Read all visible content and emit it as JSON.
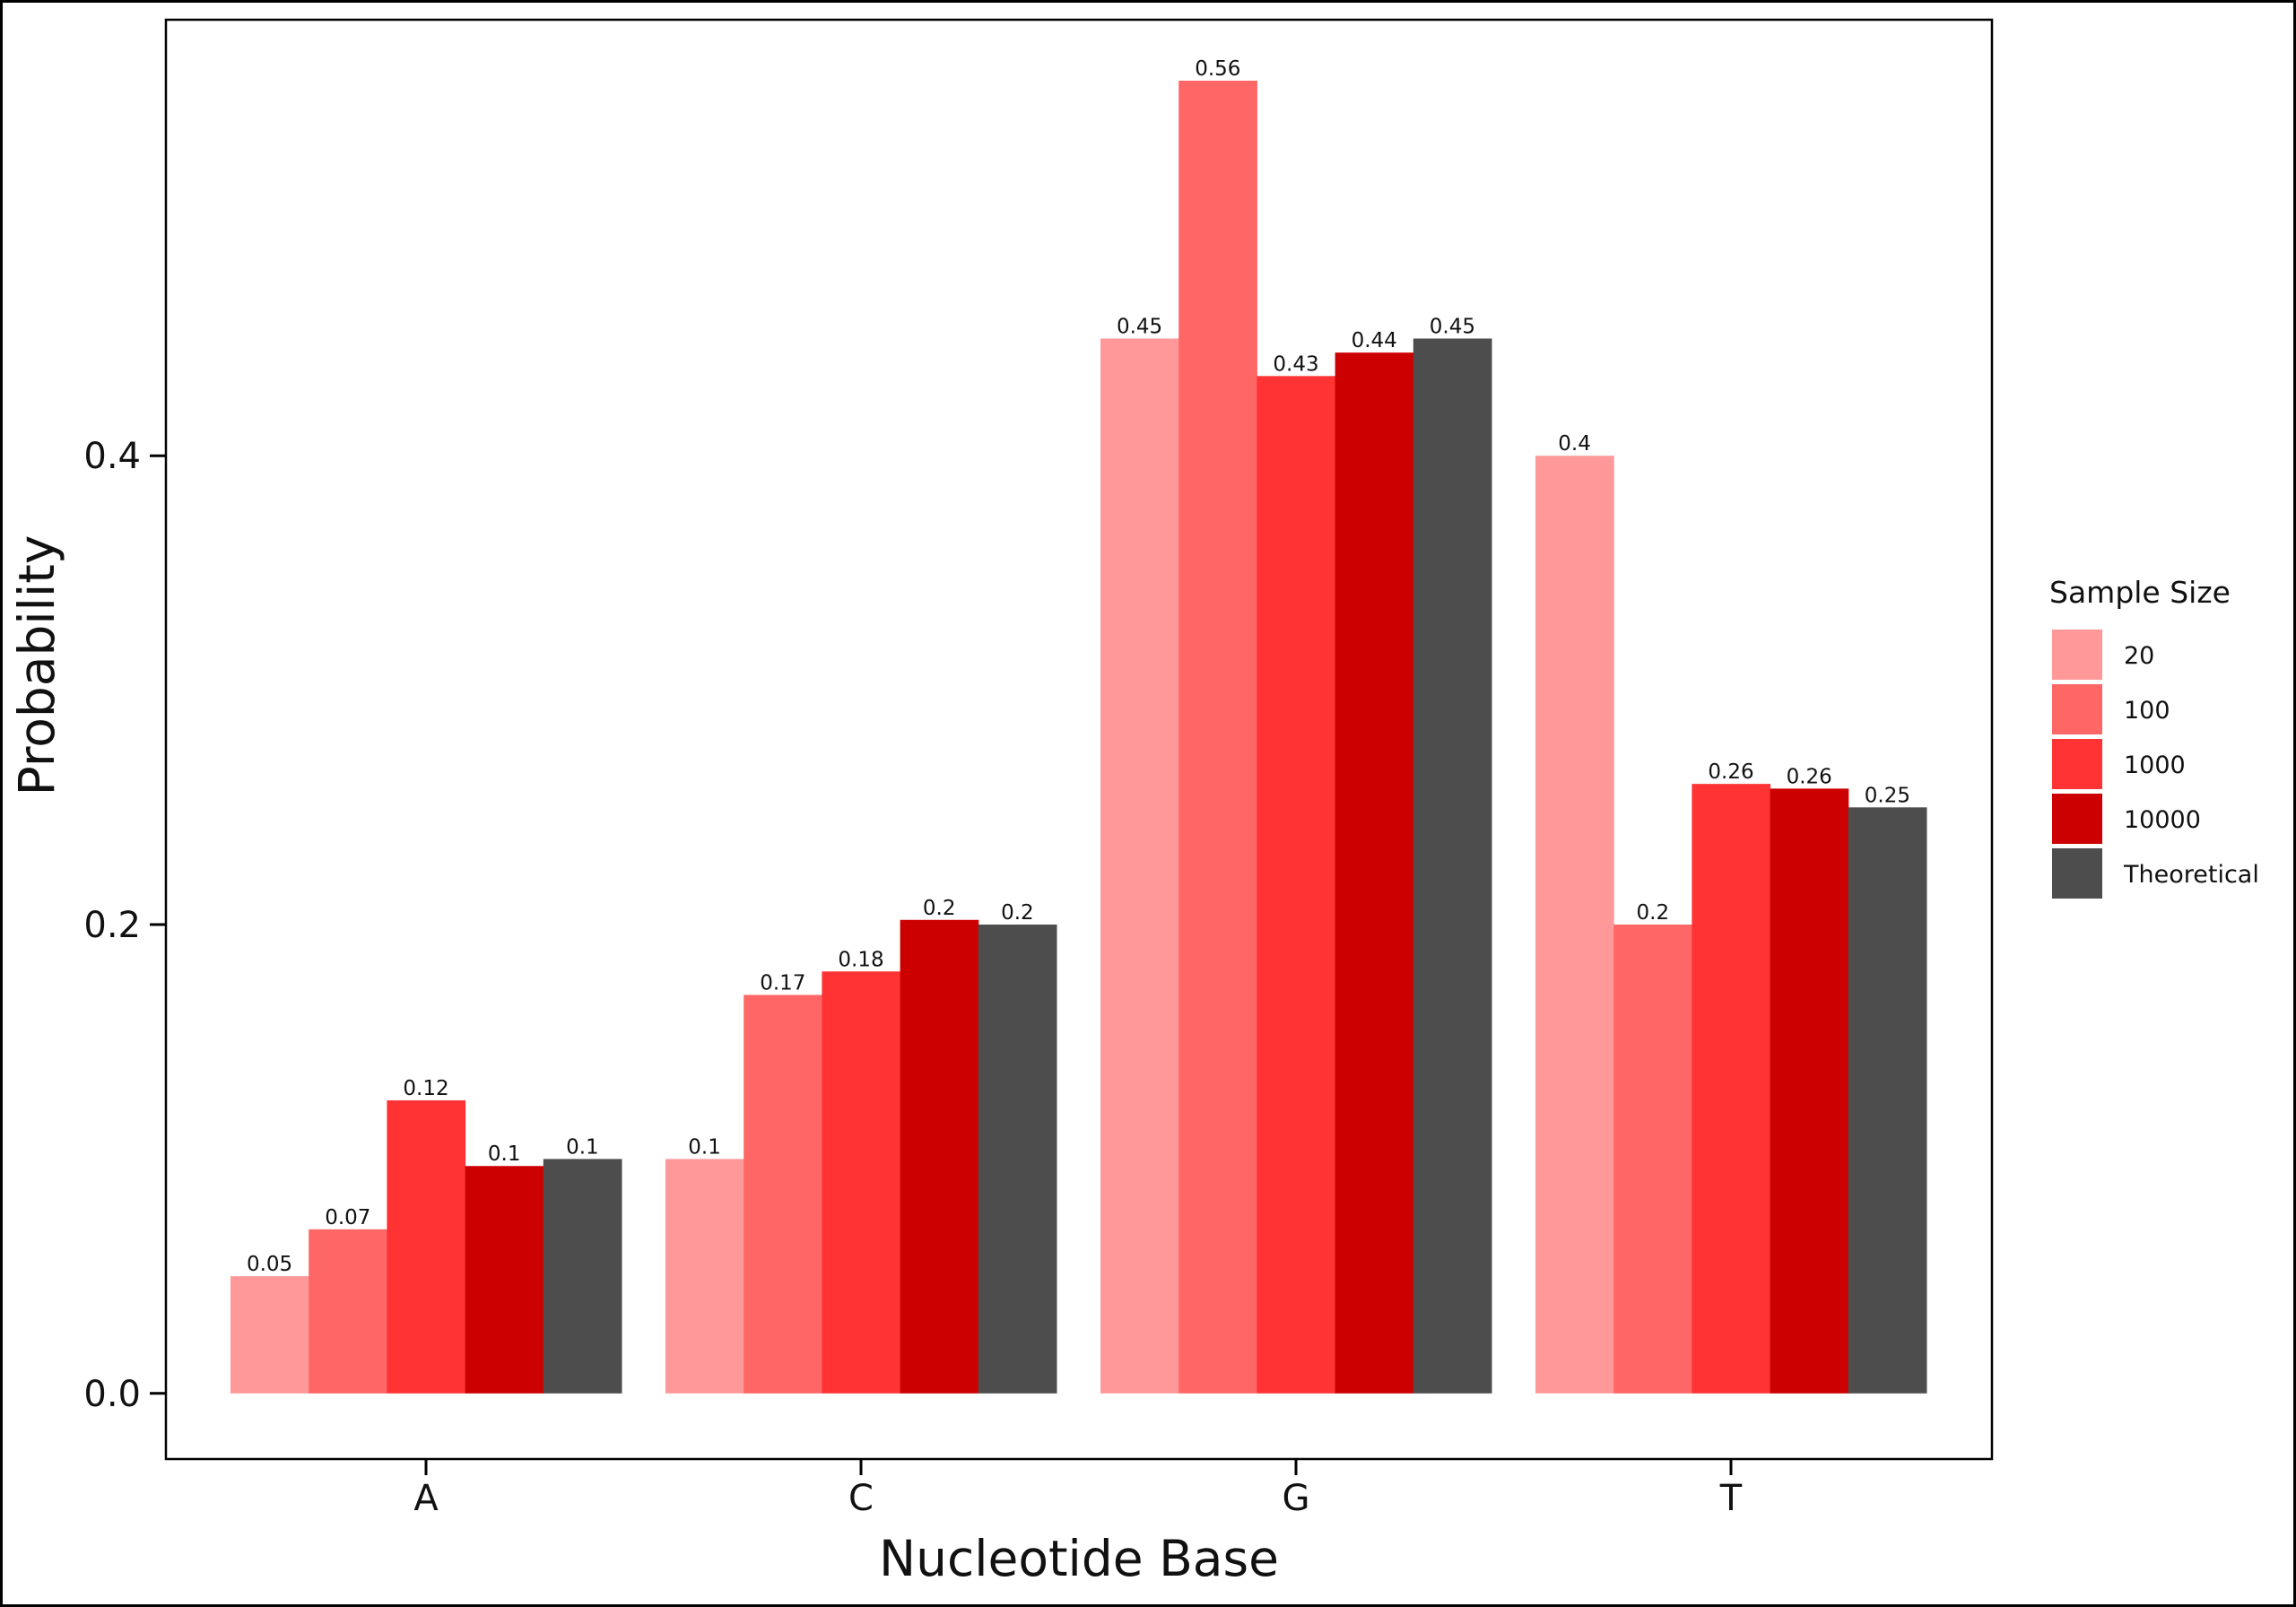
{
  "chart_data": {
    "type": "bar",
    "title": "",
    "xlabel": "Nucleotide Base",
    "ylabel": "Probability",
    "categories": [
      "A",
      "C",
      "G",
      "T"
    ],
    "ylim": [
      -0.028,
      0.586
    ],
    "yticks": [
      0.0,
      0.2,
      0.4
    ],
    "ytick_labels": [
      "0.0",
      "0.2",
      "0.4"
    ],
    "grid": false,
    "legend": {
      "title": "Sample Size",
      "position": "right"
    },
    "series": [
      {
        "name": "20",
        "color": "#FF9999",
        "values": [
          0.05,
          0.1,
          0.45,
          0.4
        ],
        "labels": [
          "0.05",
          "0.1",
          "0.45",
          "0.4"
        ]
      },
      {
        "name": "100",
        "color": "#FF6666",
        "values": [
          0.07,
          0.17,
          0.56,
          0.2
        ],
        "labels": [
          "0.07",
          "0.17",
          "0.56",
          "0.2"
        ]
      },
      {
        "name": "1000",
        "color": "#FF3333",
        "values": [
          0.125,
          0.18,
          0.434,
          0.26
        ],
        "labels": [
          "0.12",
          "0.18",
          "0.43",
          "0.26"
        ]
      },
      {
        "name": "10000",
        "color": "#CC0000",
        "values": [
          0.097,
          0.202,
          0.444,
          0.258
        ],
        "labels": [
          "0.1",
          "0.2",
          "0.44",
          "0.26"
        ]
      },
      {
        "name": "Theoretical",
        "color": "#4D4D4D",
        "values": [
          0.1,
          0.2,
          0.45,
          0.25
        ],
        "labels": [
          "0.1",
          "0.2",
          "0.45",
          "0.25"
        ]
      }
    ]
  }
}
